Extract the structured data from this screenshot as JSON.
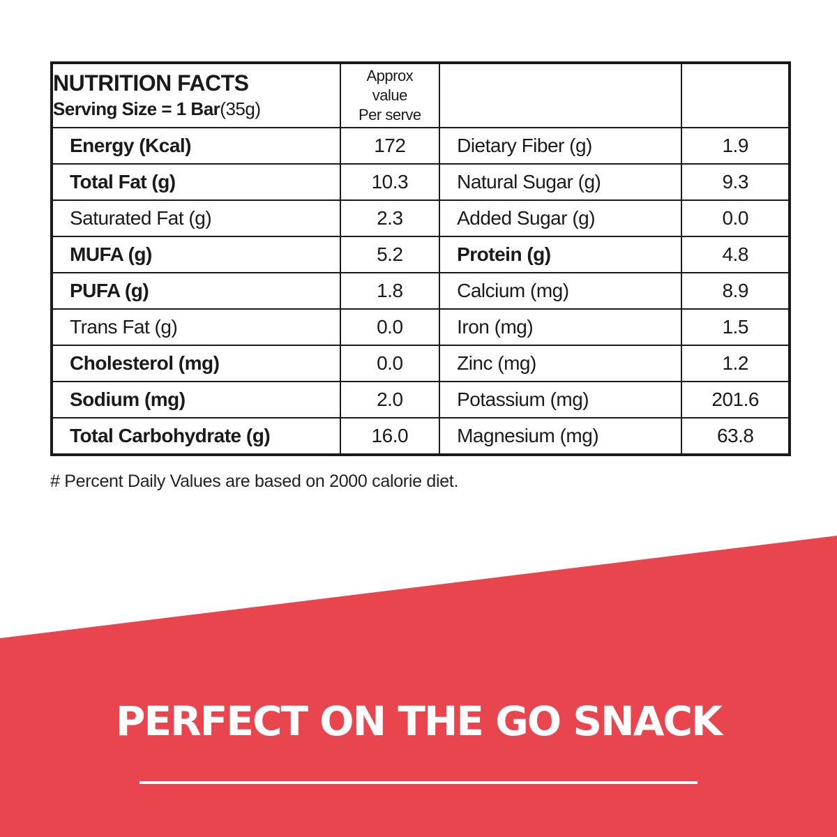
{
  "colors": {
    "accent": "#e9454e",
    "text": "#1a1a1a",
    "background": "#ffffff"
  },
  "table": {
    "title": "NUTRITION FACTS",
    "serving_label": "Serving Size = 1 Bar",
    "serving_amount": "(35g)",
    "approx_line1": "Approx",
    "approx_line2": "value",
    "approx_line3": "Per serve",
    "rows": [
      {
        "left_label": "Energy (Kcal)",
        "left_value": "172",
        "right_label": "Dietary Fiber (g)",
        "right_value": "1.9"
      },
      {
        "left_label": "Total Fat (g)",
        "left_value": "10.3",
        "right_label": "Natural Sugar (g)",
        "right_value": "9.3"
      },
      {
        "left_label": "Saturated Fat (g)",
        "left_value": "2.3",
        "right_label": "Added Sugar (g)",
        "right_value": "0.0"
      },
      {
        "left_label": "MUFA (g)",
        "left_value": "5.2",
        "right_label": "Protein (g)",
        "right_value": "4.8"
      },
      {
        "left_label": "PUFA (g)",
        "left_value": "1.8",
        "right_label": "Calcium (mg)",
        "right_value": "8.9"
      },
      {
        "left_label": "Trans Fat (g)",
        "left_value": "0.0",
        "right_label": "Iron (mg)",
        "right_value": "1.5"
      },
      {
        "left_label": "Cholesterol (mg)",
        "left_value": "0.0",
        "right_label": "Zinc (mg)",
        "right_value": "1.2"
      },
      {
        "left_label": "Sodium (mg)",
        "left_value": "2.0",
        "right_label": "Potassium (mg)",
        "right_value": "201.6"
      },
      {
        "left_label": "Total Carbohydrate (g)",
        "left_value": "16.0",
        "right_label": "Magnesium (mg)",
        "right_value": "63.8"
      }
    ]
  },
  "footnote": "# Percent Daily Values are based on 2000 calorie diet.",
  "tagline": "PERFECT ON THE GO SNACK"
}
